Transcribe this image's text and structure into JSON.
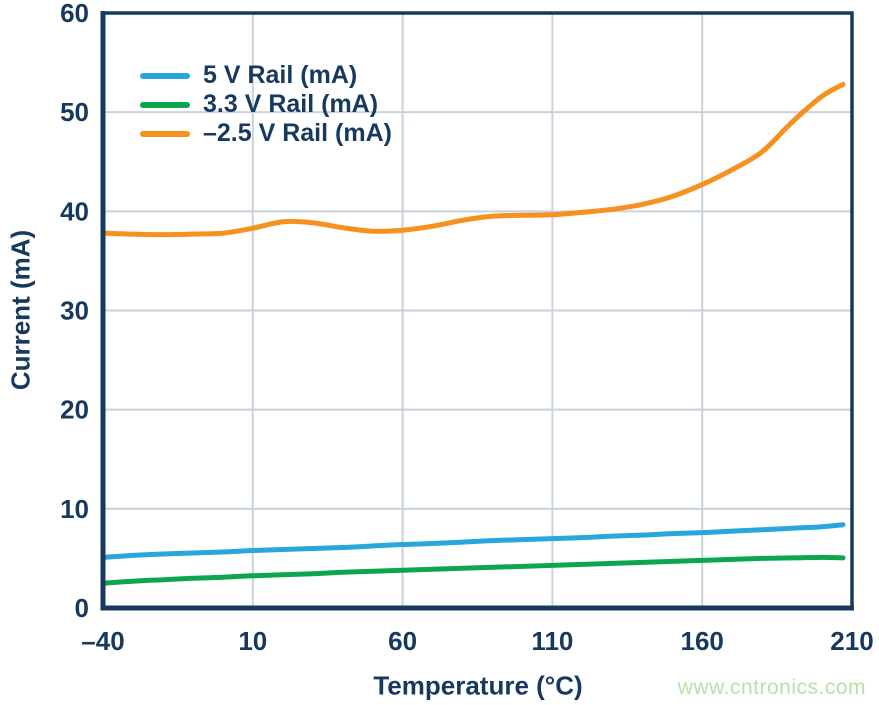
{
  "chart_data": {
    "type": "line",
    "title": "",
    "xlabel": "Temperature (°C)",
    "ylabel": "Current (mA)",
    "xlim": [
      -40,
      210
    ],
    "ylim": [
      0,
      60
    ],
    "xticks": [
      -40,
      10,
      60,
      110,
      160,
      210
    ],
    "yticks": [
      0,
      10,
      20,
      30,
      40,
      50,
      60
    ],
    "xtick_labels": [
      "–40",
      "10",
      "60",
      "110",
      "160",
      "210"
    ],
    "ytick_labels": [
      "0",
      "10",
      "20",
      "30",
      "40",
      "50",
      "60"
    ],
    "grid": true,
    "legend_position": "top-left",
    "x": [
      -40,
      -30,
      -20,
      -10,
      0,
      10,
      20,
      30,
      40,
      50,
      60,
      70,
      80,
      90,
      100,
      110,
      120,
      130,
      140,
      150,
      160,
      170,
      180,
      190,
      200,
      207
    ],
    "series": [
      {
        "name": "5 V Rail (mA)",
        "color": "#29a7dd",
        "values": [
          5.1,
          5.3,
          5.45,
          5.55,
          5.65,
          5.8,
          5.9,
          6.0,
          6.1,
          6.25,
          6.4,
          6.5,
          6.65,
          6.8,
          6.9,
          7.0,
          7.1,
          7.25,
          7.35,
          7.5,
          7.6,
          7.75,
          7.9,
          8.05,
          8.2,
          8.4
        ]
      },
      {
        "name": "3.3 V Rail (mA)",
        "color": "#0ca64f",
        "values": [
          2.5,
          2.7,
          2.85,
          3.0,
          3.1,
          3.25,
          3.35,
          3.45,
          3.6,
          3.7,
          3.8,
          3.9,
          4.0,
          4.1,
          4.2,
          4.3,
          4.4,
          4.5,
          4.6,
          4.7,
          4.8,
          4.9,
          5.0,
          5.05,
          5.1,
          5.05
        ]
      },
      {
        "name": "–2.5 V Rail (mA)",
        "color": "#f6901e",
        "values": [
          37.8,
          37.7,
          37.65,
          37.7,
          37.8,
          38.3,
          38.95,
          38.85,
          38.35,
          38.0,
          38.1,
          38.5,
          39.1,
          39.5,
          39.6,
          39.65,
          39.9,
          40.2,
          40.7,
          41.5,
          42.7,
          44.2,
          46.0,
          49.0,
          51.6,
          52.8
        ]
      }
    ]
  },
  "colors": {
    "axis": "#17395e",
    "grid": "#c9d2dc",
    "tick_text": "#17395e",
    "watermark": "#b9dfa6",
    "background": "#ffffff"
  },
  "watermark": {
    "text": "www.cntronics.com"
  }
}
